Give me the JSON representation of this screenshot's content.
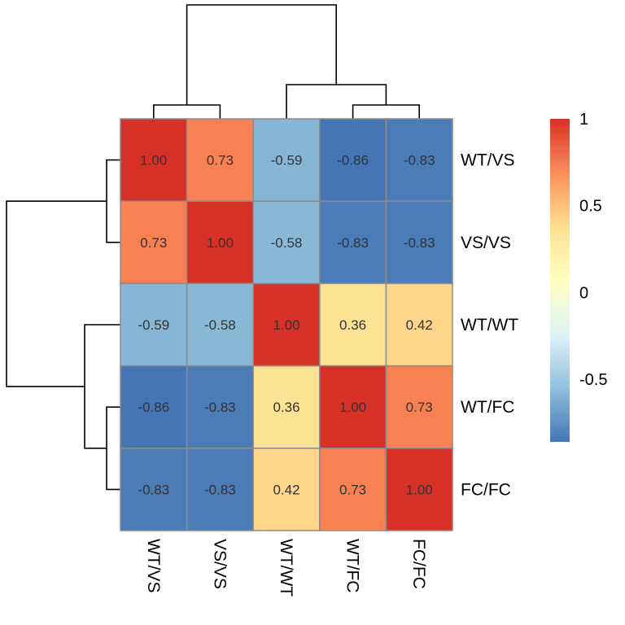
{
  "chart_data": {
    "type": "heatmap",
    "title": "",
    "xlabel": "",
    "ylabel": "",
    "rows": [
      "WT/VS",
      "VS/VS",
      "WT/WT",
      "WT/FC",
      "FC/FC"
    ],
    "columns": [
      "WT/VS",
      "VS/VS",
      "WT/WT",
      "WT/FC",
      "FC/FC"
    ],
    "values": [
      [
        1.0,
        0.73,
        -0.59,
        -0.86,
        -0.83
      ],
      [
        0.73,
        1.0,
        -0.58,
        -0.83,
        -0.83
      ],
      [
        -0.59,
        -0.58,
        1.0,
        0.36,
        0.42
      ],
      [
        -0.86,
        -0.83,
        0.36,
        1.0,
        0.73
      ],
      [
        -0.83,
        -0.83,
        0.42,
        0.73,
        1.0
      ]
    ],
    "cell_labels": [
      [
        "1.00",
        "0.73",
        "-0.59",
        "-0.86",
        "-0.83"
      ],
      [
        "0.73",
        "1.00",
        "-0.58",
        "-0.83",
        "-0.83"
      ],
      [
        "-0.59",
        "-0.58",
        "1.00",
        "0.36",
        "0.42"
      ],
      [
        "-0.86",
        "-0.83",
        "0.36",
        "1.00",
        "0.73"
      ],
      [
        "-0.83",
        "-0.83",
        "0.42",
        "0.73",
        "1.00"
      ]
    ],
    "color_range": [
      -0.86,
      1.0
    ],
    "color_stops": [
      "#4575B4",
      "#91BFDB",
      "#E0F3F8",
      "#FFFFBF",
      "#FEE090",
      "#FC8D59",
      "#D73027"
    ],
    "legend": {
      "placement": "right",
      "ticks": [
        1,
        0.5,
        0,
        -0.5
      ],
      "tick_labels": [
        "1",
        "0.5",
        "0",
        "-0.5"
      ]
    },
    "grid_color": "#8C8C8C",
    "row_dendrogram": true,
    "column_dendrogram": true
  }
}
